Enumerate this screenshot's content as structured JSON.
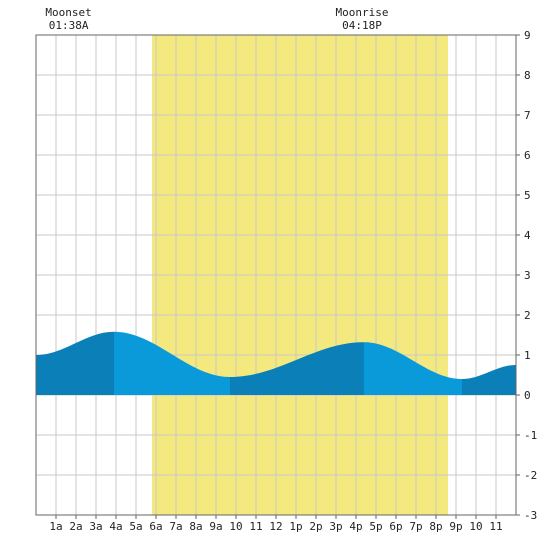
{
  "chart_data": {
    "type": "area",
    "title": "",
    "xlabel": "",
    "ylabel": "",
    "x_unit": "hour",
    "xlim": [
      0,
      24
    ],
    "ylim": [
      -3,
      9
    ],
    "grid": true,
    "x_ticks": [
      {
        "x": 1,
        "label": "1a"
      },
      {
        "x": 2,
        "label": "2a"
      },
      {
        "x": 3,
        "label": "3a"
      },
      {
        "x": 4,
        "label": "4a"
      },
      {
        "x": 5,
        "label": "5a"
      },
      {
        "x": 6,
        "label": "6a"
      },
      {
        "x": 7,
        "label": "7a"
      },
      {
        "x": 8,
        "label": "8a"
      },
      {
        "x": 9,
        "label": "9a"
      },
      {
        "x": 10,
        "label": "10"
      },
      {
        "x": 11,
        "label": "11"
      },
      {
        "x": 12,
        "label": "12"
      },
      {
        "x": 13,
        "label": "1p"
      },
      {
        "x": 14,
        "label": "2p"
      },
      {
        "x": 15,
        "label": "3p"
      },
      {
        "x": 16,
        "label": "4p"
      },
      {
        "x": 17,
        "label": "5p"
      },
      {
        "x": 18,
        "label": "6p"
      },
      {
        "x": 19,
        "label": "7p"
      },
      {
        "x": 20,
        "label": "8p"
      },
      {
        "x": 21,
        "label": "9p"
      },
      {
        "x": 22,
        "label": "10"
      },
      {
        "x": 23,
        "label": "11"
      }
    ],
    "y_ticks": [
      -3,
      -2,
      -1,
      0,
      1,
      2,
      3,
      4,
      5,
      6,
      7,
      8,
      9
    ],
    "daylight": {
      "start": 5.8,
      "end": 20.6
    },
    "moon_events": [
      {
        "name": "Moonset",
        "time": "01:38A",
        "x": 1.63
      },
      {
        "name": "Moonrise",
        "time": "04:18P",
        "x": 16.3
      }
    ],
    "tide_extremes": [
      {
        "x": 0,
        "y": 1.0
      },
      {
        "x": 3.9,
        "y": 1.58
      },
      {
        "x": 9.7,
        "y": 0.45
      },
      {
        "x": 16.4,
        "y": 1.32
      },
      {
        "x": 21.3,
        "y": 0.4
      },
      {
        "x": 24,
        "y": 0.75
      }
    ],
    "colors": {
      "daylight": "#f3e97f",
      "water_dark": "#0a7fb8",
      "water_light": "#0a9ada",
      "grid": "#c8c8c8",
      "axis": "#666666"
    }
  }
}
